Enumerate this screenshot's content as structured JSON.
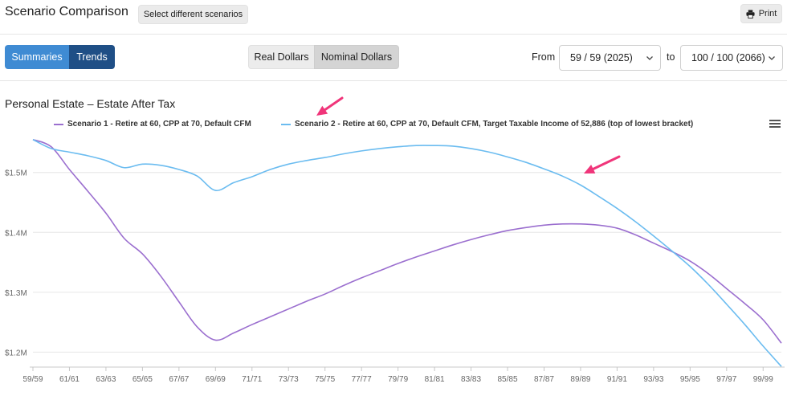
{
  "header": {
    "title": "Scenario Comparison",
    "select_scenarios_label": "Select different scenarios",
    "print_label": "Print"
  },
  "view_tabs": {
    "summaries": "Summaries",
    "trends": "Trends",
    "active": "Trends"
  },
  "dollar_toggle": {
    "real": "Real Dollars",
    "nominal": "Nominal Dollars",
    "active": "Nominal Dollars"
  },
  "range": {
    "from_label": "From",
    "from_value": "59 / 59 (2025)",
    "to_label": "to",
    "to_value": "100 / 100 (2066)"
  },
  "chart_title": "Personal Estate – Estate After Tax",
  "colors": {
    "scenario1": "#9b6fcf",
    "scenario2": "#6bbcf0",
    "accent": "#3f8bd3",
    "arrow": "#f0357a"
  },
  "chart_data": {
    "type": "line",
    "title": "Personal Estate – Estate After Tax",
    "x": [
      "59/59",
      "60/60",
      "61/61",
      "62/62",
      "63/63",
      "64/64",
      "65/65",
      "66/66",
      "67/67",
      "68/68",
      "69/69",
      "70/70",
      "71/71",
      "72/72",
      "73/73",
      "74/74",
      "75/75",
      "76/76",
      "77/77",
      "78/78",
      "79/79",
      "80/80",
      "81/81",
      "82/82",
      "83/83",
      "84/84",
      "85/85",
      "86/86",
      "87/87",
      "88/88",
      "89/89",
      "90/90",
      "91/91",
      "92/92",
      "93/93",
      "94/94",
      "95/95",
      "96/96",
      "97/97",
      "98/98",
      "99/99",
      "100/100"
    ],
    "x_tick_labels": [
      "59/59",
      "61/61",
      "63/63",
      "65/65",
      "67/67",
      "69/69",
      "71/71",
      "73/73",
      "75/75",
      "77/77",
      "79/79",
      "81/81",
      "83/83",
      "85/85",
      "87/87",
      "89/89",
      "91/91",
      "93/93",
      "95/95",
      "97/97",
      "99/99"
    ],
    "y_tick_labels": [
      "$1.2M",
      "$1.3M",
      "$1.4M",
      "$1.5M"
    ],
    "y_ticks": [
      1200000,
      1300000,
      1400000,
      1500000
    ],
    "ylim": [
      1175000,
      1560000
    ],
    "grid": true,
    "legend": "top",
    "series": [
      {
        "name": "Scenario 1 - Retire at 60, CPP at 70, Default CFM",
        "values": [
          1555000,
          1543000,
          1505000,
          1469000,
          1432000,
          1390000,
          1364000,
          1327000,
          1284000,
          1242000,
          1220000,
          1232000,
          1246000,
          1259000,
          1272000,
          1285000,
          1297000,
          1311000,
          1324000,
          1336000,
          1348000,
          1359000,
          1369000,
          1379000,
          1388000,
          1396000,
          1403000,
          1408000,
          1412000,
          1414000,
          1414000,
          1412000,
          1407000,
          1396000,
          1382000,
          1368000,
          1352000,
          1331000,
          1306000,
          1281000,
          1254000,
          1215000
        ]
      },
      {
        "name": "Scenario 2 - Retire at 60, CPP at 70, Default CFM, Target Taxable Income of 52,886 (top of lowest bracket)",
        "values": [
          1555000,
          1540000,
          1534000,
          1528000,
          1520000,
          1508000,
          1514000,
          1512000,
          1505000,
          1494000,
          1470000,
          1483000,
          1493000,
          1505000,
          1514000,
          1520000,
          1525000,
          1531000,
          1536000,
          1540000,
          1543000,
          1545000,
          1545000,
          1544000,
          1540000,
          1534000,
          1526000,
          1517000,
          1506000,
          1494000,
          1479000,
          1460000,
          1440000,
          1418000,
          1394000,
          1369000,
          1343000,
          1313000,
          1280000,
          1246000,
          1210000,
          1176000
        ]
      }
    ]
  }
}
